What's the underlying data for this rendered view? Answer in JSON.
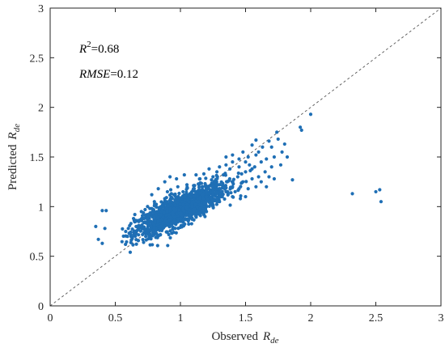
{
  "chart_data": {
    "type": "scatter",
    "title": "",
    "xlabel": {
      "prefix": "Observed",
      "symbol": "R",
      "subscript": "de"
    },
    "ylabel": {
      "prefix": "Predicted",
      "symbol": "R",
      "subscript": "de"
    },
    "xlim": [
      0,
      3
    ],
    "ylim": [
      0,
      3
    ],
    "xticks": [
      0,
      0.5,
      1,
      1.5,
      2,
      2.5,
      3
    ],
    "yticks": [
      0,
      0.5,
      1,
      1.5,
      2,
      2.5,
      3
    ],
    "xtick_labels": [
      "0",
      "0.5",
      "1",
      "1.5",
      "2",
      "2.5",
      "3"
    ],
    "ytick_labels": [
      "0",
      "0.5",
      "1",
      "1.5",
      "2",
      "2.5",
      "3"
    ],
    "grid": false,
    "reference_line": {
      "style": "dashed",
      "color": "#555555",
      "from": [
        0,
        0
      ],
      "to": [
        3,
        3
      ]
    },
    "point_color": "#1f6fb5",
    "annotations": {
      "r2": {
        "symbol": "R",
        "superscript": "2",
        "value": "=0.68"
      },
      "rmse": {
        "symbol": "RMSE",
        "value": "=0.12"
      }
    },
    "series": [
      {
        "points": [
          [
            0.35,
            0.8
          ],
          [
            0.4,
            0.96
          ],
          [
            0.43,
            0.96
          ],
          [
            0.37,
            0.67
          ],
          [
            0.4,
            0.63
          ],
          [
            0.42,
            0.78
          ],
          [
            2.32,
            1.13
          ],
          [
            2.5,
            1.15
          ],
          [
            2.53,
            1.17
          ],
          [
            2.54,
            1.05
          ],
          [
            1.92,
            1.8
          ],
          [
            1.93,
            1.77
          ],
          [
            2.0,
            1.93
          ],
          [
            1.86,
            1.27
          ],
          [
            1.75,
            1.68
          ],
          [
            1.8,
            1.63
          ],
          [
            1.7,
            1.6
          ],
          [
            1.78,
            1.55
          ],
          [
            1.74,
            1.75
          ],
          [
            1.68,
            1.66
          ],
          [
            1.58,
            1.67
          ],
          [
            1.63,
            1.6
          ],
          [
            1.72,
            1.5
          ],
          [
            1.66,
            1.48
          ],
          [
            1.6,
            1.55
          ],
          [
            1.55,
            1.62
          ],
          [
            1.82,
            1.5
          ],
          [
            1.77,
            1.42
          ],
          [
            1.7,
            1.4
          ],
          [
            1.65,
            1.35
          ],
          [
            1.62,
            1.45
          ],
          [
            1.57,
            1.4
          ],
          [
            1.52,
            1.5
          ],
          [
            1.48,
            1.55
          ],
          [
            1.6,
            1.3
          ],
          [
            1.55,
            1.28
          ],
          [
            1.5,
            1.35
          ],
          [
            1.45,
            1.4
          ],
          [
            1.58,
            1.2
          ],
          [
            1.52,
            1.18
          ],
          [
            1.48,
            1.25
          ],
          [
            1.44,
            1.3
          ],
          [
            1.4,
            1.45
          ],
          [
            1.38,
            1.38
          ],
          [
            1.35,
            1.42
          ],
          [
            1.42,
            1.15
          ],
          [
            1.5,
            1.1
          ],
          [
            1.46,
            1.08
          ],
          [
            1.4,
            1.2
          ],
          [
            1.36,
            1.25
          ],
          [
            1.33,
            1.32
          ],
          [
            1.3,
            1.4
          ],
          [
            1.28,
            1.35
          ],
          [
            1.25,
            1.3
          ],
          [
            1.22,
            1.38
          ],
          [
            1.18,
            1.33
          ],
          [
            1.15,
            1.28
          ],
          [
            1.12,
            1.32
          ],
          [
            1.32,
            1.1
          ],
          [
            1.28,
            1.05
          ],
          [
            1.25,
            1.15
          ],
          [
            1.2,
            1.2
          ],
          [
            1.17,
            1.12
          ],
          [
            1.14,
            1.05
          ],
          [
            1.1,
            1.18
          ],
          [
            1.08,
            1.1
          ],
          [
            1.05,
            1.22
          ],
          [
            1.02,
            1.15
          ],
          [
            1.0,
            1.08
          ],
          [
            0.98,
            1.2
          ],
          [
            0.95,
            1.12
          ],
          [
            0.93,
            1.05
          ],
          [
            0.9,
            1.15
          ],
          [
            0.88,
            1.08
          ],
          [
            0.85,
            1.0
          ],
          [
            0.82,
            0.95
          ],
          [
            0.8,
            1.05
          ],
          [
            0.78,
            0.98
          ],
          [
            0.75,
            0.92
          ],
          [
            0.72,
            0.88
          ],
          [
            0.7,
            0.95
          ],
          [
            0.68,
            0.85
          ],
          [
            0.66,
            0.8
          ],
          [
            0.64,
            0.88
          ],
          [
            0.62,
            0.83
          ],
          [
            0.6,
            0.78
          ],
          [
            0.58,
            0.75
          ],
          [
            0.65,
            0.92
          ],
          [
            0.7,
            0.8
          ],
          [
            0.75,
            0.85
          ],
          [
            0.8,
            0.9
          ],
          [
            0.85,
            0.92
          ],
          [
            0.9,
            0.95
          ],
          [
            0.95,
            0.98
          ],
          [
            1.0,
            1.0
          ],
          [
            1.05,
            1.02
          ],
          [
            1.1,
            1.05
          ],
          [
            1.15,
            1.08
          ],
          [
            1.2,
            1.1
          ],
          [
            1.25,
            1.12
          ],
          [
            1.3,
            1.18
          ],
          [
            1.35,
            1.15
          ],
          [
            1.4,
            1.1
          ],
          [
            1.45,
            1.18
          ],
          [
            1.05,
            0.92
          ],
          [
            1.0,
            0.88
          ],
          [
            0.95,
            0.85
          ],
          [
            0.9,
            0.82
          ],
          [
            0.85,
            0.8
          ],
          [
            0.8,
            0.78
          ],
          [
            0.75,
            0.76
          ],
          [
            0.72,
            0.74
          ],
          [
            1.1,
            0.95
          ],
          [
            1.15,
            0.98
          ],
          [
            1.2,
            1.0
          ],
          [
            1.25,
            1.02
          ],
          [
            1.3,
            1.05
          ],
          [
            1.18,
            0.92
          ],
          [
            0.88,
            1.25
          ],
          [
            0.92,
            1.3
          ],
          [
            0.97,
            1.28
          ],
          [
            1.03,
            1.32
          ],
          [
            0.83,
            1.18
          ],
          [
            0.78,
            1.12
          ],
          [
            1.62,
            1.25
          ],
          [
            1.68,
            1.3
          ],
          [
            1.55,
            1.38
          ],
          [
            1.66,
            1.2
          ],
          [
            1.72,
            1.28
          ],
          [
            1.58,
            1.52
          ],
          [
            1.45,
            1.48
          ],
          [
            1.4,
            1.52
          ],
          [
            1.35,
            1.5
          ],
          [
            1.5,
            1.45
          ],
          [
            1.53,
            1.42
          ],
          [
            1.47,
            1.33
          ]
        ]
      }
    ]
  }
}
